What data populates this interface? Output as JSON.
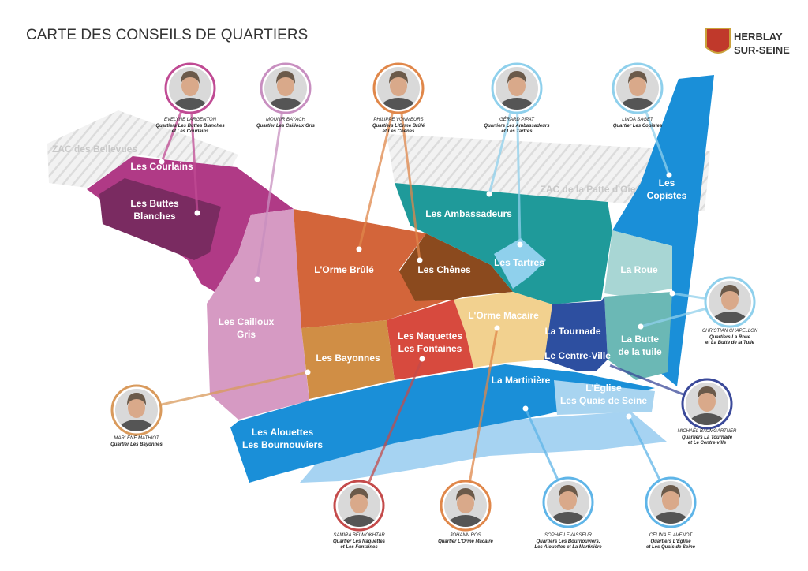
{
  "header": {
    "title": "CARTE DES CONSEILS DE QUARTIERS"
  },
  "logo": {
    "lines": [
      "HERBLAY",
      "SUR-SEINE"
    ]
  },
  "zones": [
    {
      "lines": [
        "ZAC des Bellevues"
      ]
    },
    {
      "lines": [
        "ZAC de la Patte d'Oie"
      ]
    },
    {
      "lines": [
        "Les Courlains"
      ]
    },
    {
      "lines": [
        "Les Buttes",
        "Blanches"
      ]
    },
    {
      "lines": [
        "Les Cailloux",
        "Gris"
      ]
    },
    {
      "lines": [
        "L'Orme Brûlé"
      ]
    },
    {
      "lines": [
        "Les Chênes"
      ]
    },
    {
      "lines": [
        "Les Ambassadeurs"
      ]
    },
    {
      "lines": [
        "Les Tartres"
      ]
    },
    {
      "lines": [
        "Les",
        "Copistes"
      ]
    },
    {
      "lines": [
        "La Roue"
      ]
    },
    {
      "lines": [
        "La Butte",
        "de la tuile"
      ]
    },
    {
      "lines": [
        "La Tournade"
      ]
    },
    {
      "lines": [
        "Le Centre-Ville"
      ]
    },
    {
      "lines": [
        "L'Orme Macaire"
      ]
    },
    {
      "lines": [
        "Les Naquettes",
        "Les Fontaines"
      ]
    },
    {
      "lines": [
        "Les Bayonnes"
      ]
    },
    {
      "lines": [
        "La Martinière"
      ]
    },
    {
      "lines": [
        "L'Église",
        "Les Quais de Seine"
      ]
    },
    {
      "lines": [
        "Les Alouettes",
        "Les Bournouviers"
      ]
    }
  ],
  "people": [
    {
      "name": "EVELYNE LARGENTON",
      "lines": [
        "Quartiers Les Buttes Blanches",
        "et Les Courlains"
      ]
    },
    {
      "name": "MOUNIR BAYACH",
      "lines": [
        "Quartier Les Cailloux Gris"
      ]
    },
    {
      "name": "PHILIPPE VONMEURS",
      "lines": [
        "Quartiers L'Orme Brûlé",
        "et Les Chênes"
      ]
    },
    {
      "name": "GÉRARD PIPAT",
      "lines": [
        "Quartiers Les Ambassadeurs",
        "et Les Tartres"
      ]
    },
    {
      "name": "LINDA SAGET",
      "lines": [
        "Quartier Les Copistes"
      ]
    },
    {
      "name": "CHRISTIAN CHAPELLON",
      "lines": [
        "Quartiers La Roue",
        "et La Butte de la Tuile"
      ]
    },
    {
      "name": "MICHAËL BAUMGARTNER",
      "lines": [
        "Quartiers La Tournade",
        "et Le Centre-ville"
      ]
    },
    {
      "name": "MARLÈNE MATHIOT",
      "lines": [
        "Quartier Les Bayonnes"
      ]
    },
    {
      "name": "SAMIRA BELMOKHTAR",
      "lines": [
        "Quartier Les Naquettes",
        "et Les Fontaines"
      ]
    },
    {
      "name": "JOHANN ROS",
      "lines": [
        "Quartier L'Orme Macaire"
      ]
    },
    {
      "name": "SOPHIE LEVASSEUR",
      "lines": [
        "Quartiers Les Bournouviers,",
        "Les Alouettes et La Martinière"
      ]
    },
    {
      "name": "CÉLINA FLAVENOT",
      "lines": [
        "Quartiers L'Église",
        "et Les Quais de Seine"
      ]
    }
  ]
}
